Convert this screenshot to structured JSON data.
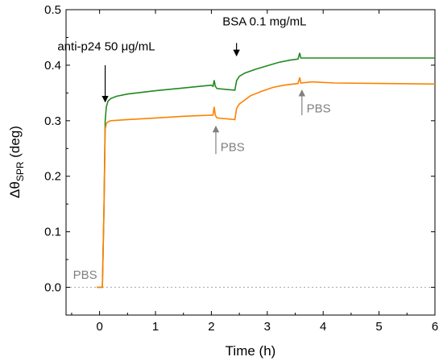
{
  "chart_data": {
    "type": "line",
    "xlabel": "Time (h)",
    "ylabel_main": "Δθ",
    "ylabel_sub": "SPR",
    "ylabel_unit": " (deg)",
    "xlim": [
      -0.6,
      6
    ],
    "ylim": [
      -0.05,
      0.5
    ],
    "xticks": [
      0,
      1,
      2,
      3,
      4,
      5,
      6
    ],
    "xtick_labels": [
      "0",
      "1",
      "2",
      "3",
      "4",
      "5",
      "6"
    ],
    "yticks": [
      0.0,
      0.1,
      0.2,
      0.3,
      0.4,
      0.5
    ],
    "ytick_labels": [
      "0.0",
      "0.1",
      "0.2",
      "0.3",
      "0.4",
      "0.5"
    ],
    "baseline": {
      "y": 0.0,
      "style": "dotted",
      "color": "#aaaaaa"
    },
    "series": [
      {
        "color": "#1f8a1f",
        "points": [
          [
            -0.05,
            0.0
          ],
          [
            0.05,
            0.0
          ],
          [
            0.08,
            0.15
          ],
          [
            0.1,
            0.3
          ],
          [
            0.12,
            0.325
          ],
          [
            0.15,
            0.335
          ],
          [
            0.2,
            0.34
          ],
          [
            0.3,
            0.344
          ],
          [
            0.5,
            0.348
          ],
          [
            1.0,
            0.354
          ],
          [
            1.5,
            0.359
          ],
          [
            2.0,
            0.364
          ],
          [
            2.03,
            0.362
          ],
          [
            2.05,
            0.373
          ],
          [
            2.07,
            0.362
          ],
          [
            2.1,
            0.358
          ],
          [
            2.3,
            0.356
          ],
          [
            2.42,
            0.355
          ],
          [
            2.45,
            0.372
          ],
          [
            2.5,
            0.38
          ],
          [
            2.6,
            0.386
          ],
          [
            2.8,
            0.393
          ],
          [
            3.0,
            0.399
          ],
          [
            3.2,
            0.405
          ],
          [
            3.4,
            0.409
          ],
          [
            3.55,
            0.411
          ],
          [
            3.58,
            0.422
          ],
          [
            3.6,
            0.413
          ],
          [
            3.8,
            0.413
          ],
          [
            4.2,
            0.413
          ],
          [
            5.0,
            0.413
          ],
          [
            6.0,
            0.413
          ]
        ]
      },
      {
        "color": "#ff8000",
        "points": [
          [
            -0.05,
            0.0
          ],
          [
            0.05,
            0.0
          ],
          [
            0.08,
            0.15
          ],
          [
            0.1,
            0.285
          ],
          [
            0.12,
            0.295
          ],
          [
            0.15,
            0.298
          ],
          [
            0.2,
            0.3
          ],
          [
            0.5,
            0.302
          ],
          [
            1.0,
            0.305
          ],
          [
            1.5,
            0.308
          ],
          [
            2.0,
            0.31
          ],
          [
            2.03,
            0.31
          ],
          [
            2.05,
            0.325
          ],
          [
            2.07,
            0.31
          ],
          [
            2.1,
            0.305
          ],
          [
            2.42,
            0.302
          ],
          [
            2.45,
            0.322
          ],
          [
            2.5,
            0.33
          ],
          [
            2.7,
            0.345
          ],
          [
            2.9,
            0.353
          ],
          [
            3.1,
            0.36
          ],
          [
            3.3,
            0.364
          ],
          [
            3.55,
            0.367
          ],
          [
            3.58,
            0.378
          ],
          [
            3.6,
            0.368
          ],
          [
            3.8,
            0.37
          ],
          [
            4.2,
            0.368
          ],
          [
            5.0,
            0.367
          ],
          [
            6.0,
            0.366
          ]
        ]
      }
    ],
    "annotations": [
      {
        "text": "anti-p24 50 μg/mL",
        "color": "black",
        "arrow_x": 0.1,
        "arrow_tail_y": 0.4,
        "arrow_head_y": 0.334,
        "text_x": 0.12,
        "text_y": 0.427
      },
      {
        "text": "BSA 0.1 mg/mL",
        "color": "black",
        "arrow_x": 2.45,
        "arrow_tail_y": 0.44,
        "arrow_head_y": 0.417,
        "text_x": 2.95,
        "text_y": 0.472
      },
      {
        "text": "PBS",
        "color": "gray",
        "arrow_x": 2.08,
        "arrow_tail_y": 0.24,
        "arrow_head_y": 0.29,
        "text_x": 2.38,
        "text_y": 0.245
      },
      {
        "text": "PBS",
        "color": "gray",
        "arrow_x": 3.62,
        "arrow_tail_y": 0.31,
        "arrow_head_y": 0.355,
        "text_x": 3.92,
        "text_y": 0.315
      },
      {
        "text": "PBS",
        "color": "gray",
        "text_x": -0.26,
        "text_y": 0.015
      }
    ]
  }
}
